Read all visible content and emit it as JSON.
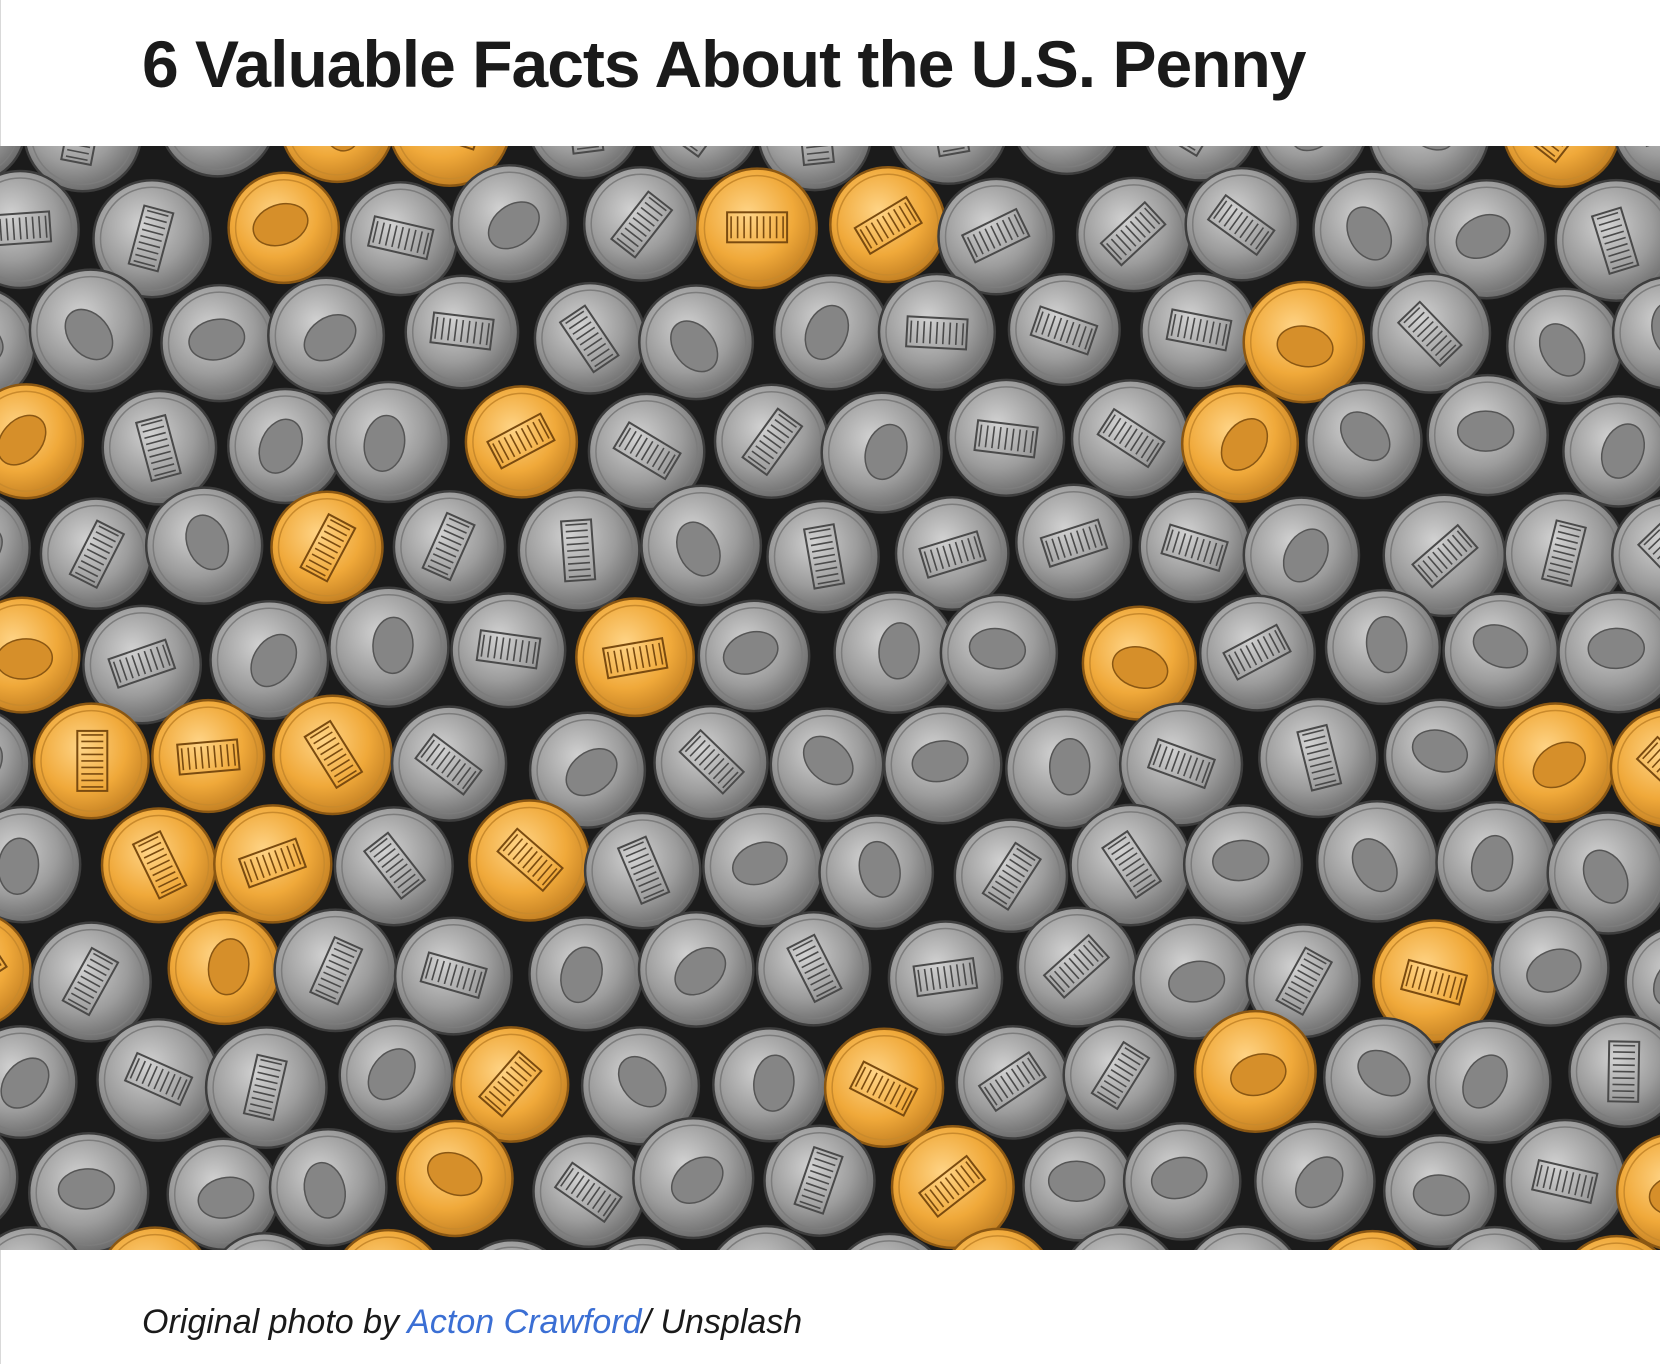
{
  "article": {
    "title": "6 Valuable Facts About the U.S. Penny"
  },
  "hero_image": {
    "accent_color": "#f0a93a",
    "coin_color": "#9a9a9a",
    "background_color": "#1b1b1b"
  },
  "caption": {
    "prefix": "Original photo by ",
    "author": "Acton Crawford",
    "suffix": "/ Unsplash"
  }
}
